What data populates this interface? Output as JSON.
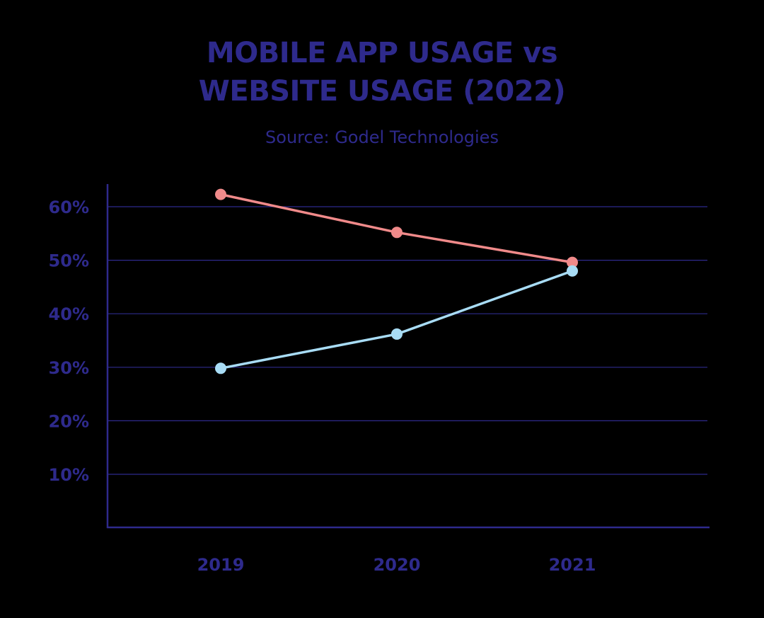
{
  "header": {
    "title_line1": "MOBILE APP USAGE vs",
    "title_line2": "WEBSITE USAGE (2022)",
    "subtitle": "Source: Godel Technologies"
  },
  "colors": {
    "text": "#2e2a8c",
    "axis": "#2e2a8c",
    "grid": "#2e2a8c",
    "website_series": "#f08a8a",
    "app_series": "#a8dcf5",
    "background": "#000000"
  },
  "chart_data": {
    "type": "line",
    "title": "MOBILE APP USAGE vs WEBSITE USAGE (2022)",
    "subtitle": "Source: Godel Technologies",
    "xlabel": "",
    "ylabel": "",
    "categories": [
      "2019",
      "2020",
      "2021"
    ],
    "series": [
      {
        "values": [
          62.3,
          55.2,
          49.6
        ],
        "color": "#f08a8a"
      },
      {
        "values": [
          29.8,
          36.2,
          48.0
        ],
        "color": "#a8dcf5"
      }
    ],
    "ylim": [
      0,
      60
    ],
    "yticks": [
      10,
      20,
      30,
      40,
      50,
      60
    ],
    "ytick_labels": [
      "10%",
      "20%",
      "30%",
      "40%",
      "50%",
      "60%"
    ],
    "grid": true,
    "legend": "none"
  }
}
